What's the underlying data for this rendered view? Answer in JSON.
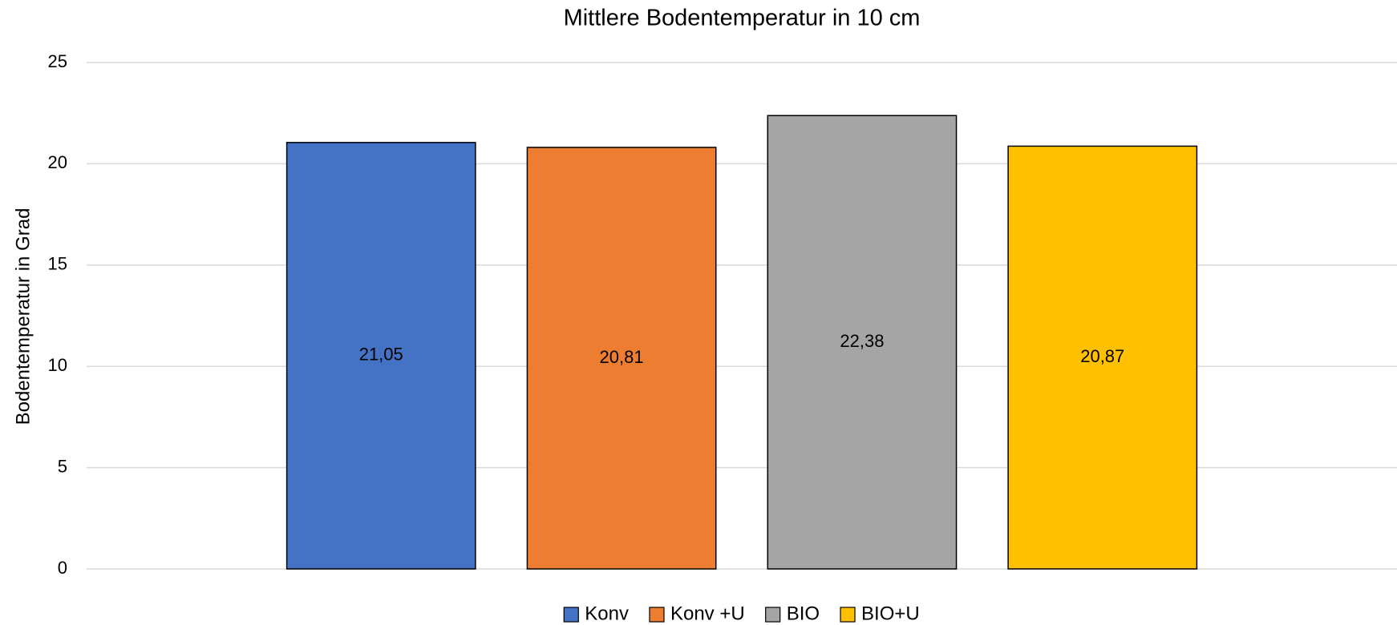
{
  "chart_data": {
    "type": "bar",
    "title": "Mittlere Bodentemperatur in 10 cm",
    "y_axis_label": "Bodentemperatur in Grad",
    "categories": [
      null
    ],
    "series": [
      {
        "name": "Konv",
        "color": "#4472c4",
        "values": [
          21.05
        ],
        "value_labels": [
          "21,05"
        ]
      },
      {
        "name": "Konv +U",
        "color": "#ed7d31",
        "values": [
          20.81
        ],
        "value_labels": [
          "20,81"
        ]
      },
      {
        "name": "BIO",
        "color": "#a5a5a5",
        "values": [
          22.38
        ],
        "value_labels": [
          "22,38"
        ]
      },
      {
        "name": "BIO+U",
        "color": "#ffc000",
        "values": [
          20.87
        ],
        "value_labels": [
          "20,87"
        ]
      }
    ],
    "ylim": [
      0,
      25
    ],
    "yticks": [
      0,
      5,
      10,
      15,
      20,
      25
    ],
    "grid": true,
    "legend": "bottom"
  }
}
